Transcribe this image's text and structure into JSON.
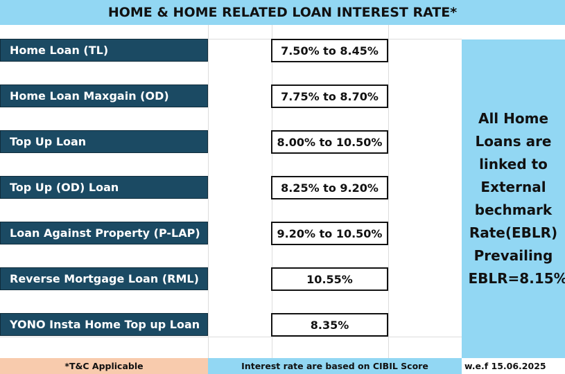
{
  "title": "HOME & HOME RELATED LOAN INTEREST RATE*",
  "loans": [
    {
      "name": "Home Loan (TL)",
      "rate": "7.50% to 8.45%"
    },
    {
      "name": "Home Loan  Maxgain (OD)",
      "rate": "7.75% to 8.70%"
    },
    {
      "name": "Top Up Loan",
      "rate": "8.00% to 10.50%"
    },
    {
      "name": "Top  Up (OD) Loan",
      "rate": "8.25% to 9.20%"
    },
    {
      "name": "Loan Against Property (P-LAP)",
      "rate": "9.20% to 10.50%"
    },
    {
      "name": "Reverse Mortgage Loan (RML)",
      "rate": "10.55%"
    },
    {
      "name": "YONO Insta Home Top up Loan",
      "rate": "8.35%"
    }
  ],
  "side_note": "All Home Loans are linked to External bechmark Rate(EBLR) Prevailing EBLR=8.15%",
  "footer": {
    "tc": "*T&C Applicable",
    "basis": "Interest rate are based on CIBIL Score",
    "effective": "w.e.f 15.06.2025"
  },
  "colors": {
    "header_bg": "#92d7f3",
    "label_bg": "#1b4a63",
    "tc_bg": "#f8cbad"
  }
}
